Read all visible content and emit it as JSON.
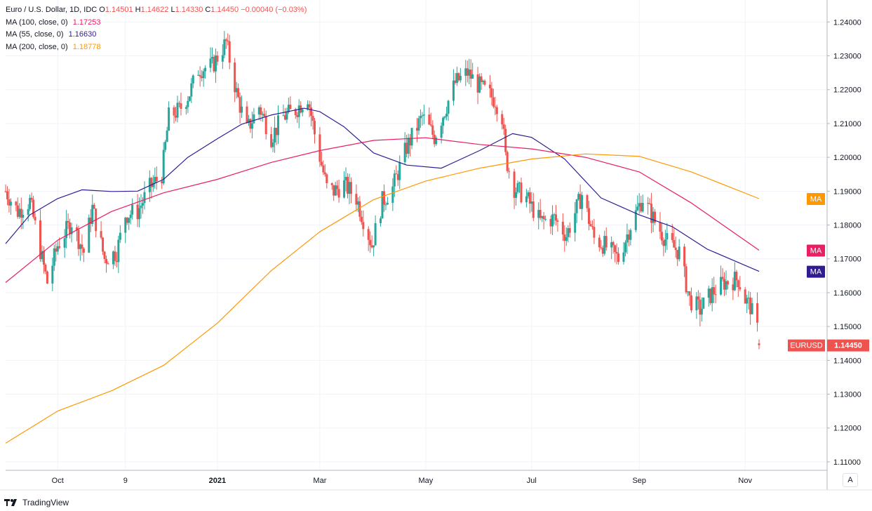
{
  "legend": {
    "symbol": "Euro / U.S. Dollar, 1D, IDC",
    "open_label": "O",
    "open": "1.14501",
    "high_label": "H",
    "high": "1.14622",
    "low_label": "L",
    "low": "1.14330",
    "close_label": "C",
    "close": "1.14450",
    "change": "−0.00040 (−0.03%)",
    "ma100_label": "MA (100, close, 0)",
    "ma100_value": "1.17253",
    "ma55_label": "MA (55, close, 0)",
    "ma55_value": "1.16630",
    "ma200_label": "MA (200, close, 0)",
    "ma200_value": "1.18778"
  },
  "footer": {
    "brand": "TradingView",
    "auto_button": "A"
  },
  "colors": {
    "up": "#26a69a",
    "down": "#ef5350",
    "ma100": "#e91e63",
    "ma55": "#311b92",
    "ma200": "#ff9800"
  },
  "chart_data": {
    "type": "candlestick",
    "symbol": "EURUSD",
    "y_ticks": [
      "1.24000",
      "1.23000",
      "1.22000",
      "1.21000",
      "1.20000",
      "1.19000",
      "1.18000",
      "1.17000",
      "1.16000",
      "1.15000",
      "1.14000",
      "1.13000",
      "1.12000",
      "1.11000"
    ],
    "ylim": [
      1.1075,
      1.2465
    ],
    "x_ticks": [
      "Oct",
      "9",
      "2021",
      "Mar",
      "May",
      "Jul",
      "Sep",
      "Nov"
    ],
    "x_tick_dates": [
      "2020-10-01",
      "2020-11-09",
      "2021-01-01",
      "2021-03-01",
      "2021-05-01",
      "2021-07-01",
      "2021-09-01",
      "2021-11-01"
    ],
    "x_range": [
      "2020-09-01",
      "2021-11-09"
    ],
    "price_label": {
      "name": "EURUSD",
      "value": "1.14450",
      "color": "#ef5350"
    },
    "ma_labels": [
      {
        "name": "MA",
        "value": 1.18778,
        "color": "#ff9800"
      },
      {
        "name": "MA",
        "value": 1.17253,
        "color": "#e91e63"
      },
      {
        "name": "MA",
        "value": 1.1663,
        "color": "#311b92"
      }
    ],
    "close_path": [
      [
        "2020-09-01",
        1.19
      ],
      [
        "2020-09-08",
        1.184
      ],
      [
        "2020-09-15",
        1.187
      ],
      [
        "2020-09-22",
        1.17
      ],
      [
        "2020-09-25",
        1.163
      ],
      [
        "2020-10-01",
        1.174
      ],
      [
        "2020-10-09",
        1.181
      ],
      [
        "2020-10-16",
        1.172
      ],
      [
        "2020-10-21",
        1.185
      ],
      [
        "2020-10-28",
        1.17
      ],
      [
        "2020-11-04",
        1.172
      ],
      [
        "2020-11-09",
        1.183
      ],
      [
        "2020-11-16",
        1.184
      ],
      [
        "2020-11-23",
        1.191
      ],
      [
        "2020-11-30",
        1.195
      ],
      [
        "2020-12-04",
        1.212
      ],
      [
        "2020-12-10",
        1.214
      ],
      [
        "2020-12-16",
        1.219
      ],
      [
        "2020-12-21",
        1.226
      ],
      [
        "2020-12-29",
        1.227
      ],
      [
        "2021-01-06",
        1.234
      ],
      [
        "2021-01-12",
        1.219
      ],
      [
        "2021-01-18",
        1.208
      ],
      [
        "2021-01-25",
        1.215
      ],
      [
        "2021-02-01",
        1.206
      ],
      [
        "2021-02-08",
        1.212
      ],
      [
        "2021-02-15",
        1.214
      ],
      [
        "2021-02-22",
        1.218
      ],
      [
        "2021-02-26",
        1.207
      ],
      [
        "2021-03-05",
        1.191
      ],
      [
        "2021-03-09",
        1.19
      ],
      [
        "2021-03-15",
        1.192
      ],
      [
        "2021-03-22",
        1.188
      ],
      [
        "2021-03-31",
        1.174
      ],
      [
        "2021-04-06",
        1.187
      ],
      [
        "2021-04-12",
        1.191
      ],
      [
        "2021-04-20",
        1.203
      ],
      [
        "2021-04-29",
        1.212
      ],
      [
        "2021-05-06",
        1.206
      ],
      [
        "2021-05-12",
        1.214
      ],
      [
        "2021-05-18",
        1.222
      ],
      [
        "2021-05-25",
        1.225
      ],
      [
        "2021-06-01",
        1.221
      ],
      [
        "2021-06-10",
        1.217
      ],
      [
        "2021-06-14",
        1.212
      ],
      [
        "2021-06-16",
        1.2
      ],
      [
        "2021-06-21",
        1.191
      ],
      [
        "2021-06-28",
        1.188
      ],
      [
        "2021-07-06",
        1.181
      ],
      [
        "2021-07-14",
        1.182
      ],
      [
        "2021-07-21",
        1.177
      ],
      [
        "2021-07-30",
        1.189
      ],
      [
        "2021-08-06",
        1.176
      ],
      [
        "2021-08-12",
        1.174
      ],
      [
        "2021-08-20",
        1.17
      ],
      [
        "2021-08-27",
        1.18
      ],
      [
        "2021-09-03",
        1.188
      ],
      [
        "2021-09-10",
        1.181
      ],
      [
        "2021-09-17",
        1.175
      ],
      [
        "2021-09-24",
        1.172
      ],
      [
        "2021-09-30",
        1.158
      ],
      [
        "2021-10-06",
        1.155
      ],
      [
        "2021-10-13",
        1.16
      ],
      [
        "2021-10-20",
        1.163
      ],
      [
        "2021-10-28",
        1.164
      ],
      [
        "2021-11-01",
        1.158
      ],
      [
        "2021-11-04",
        1.156
      ],
      [
        "2021-11-05",
        1.154
      ],
      [
        "2021-11-08",
        1.149
      ],
      [
        "2021-11-09",
        1.1445
      ]
    ],
    "series": [
      {
        "name": "MA (55, close, 0)",
        "color": "#311b92",
        "points": [
          [
            "2020-09-01",
            1.1745
          ],
          [
            "2020-09-15",
            1.183
          ],
          [
            "2020-10-01",
            1.1878
          ],
          [
            "2020-10-15",
            1.1904
          ],
          [
            "2020-11-01",
            1.1899
          ],
          [
            "2020-11-16",
            1.19
          ],
          [
            "2020-12-01",
            1.1935
          ],
          [
            "2020-12-15",
            1.2
          ],
          [
            "2021-01-01",
            1.2055
          ],
          [
            "2021-01-15",
            1.2098
          ],
          [
            "2021-02-01",
            1.2125
          ],
          [
            "2021-02-20",
            1.2145
          ],
          [
            "2021-03-01",
            1.2135
          ],
          [
            "2021-03-15",
            1.209
          ],
          [
            "2021-04-01",
            1.2013
          ],
          [
            "2021-04-20",
            1.1977
          ],
          [
            "2021-05-10",
            1.1968
          ],
          [
            "2021-06-01",
            1.202
          ],
          [
            "2021-06-20",
            1.207
          ],
          [
            "2021-07-01",
            1.2059
          ],
          [
            "2021-07-20",
            1.1995
          ],
          [
            "2021-08-10",
            1.188
          ],
          [
            "2021-09-01",
            1.183
          ],
          [
            "2021-09-20",
            1.1795
          ],
          [
            "2021-10-10",
            1.1729
          ],
          [
            "2021-11-09",
            1.1663
          ]
        ]
      },
      {
        "name": "MA (100, close, 0)",
        "color": "#e91e63",
        "points": [
          [
            "2020-09-01",
            1.163
          ],
          [
            "2020-10-01",
            1.1755
          ],
          [
            "2020-11-01",
            1.184
          ],
          [
            "2020-12-01",
            1.1895
          ],
          [
            "2021-01-01",
            1.1935
          ],
          [
            "2021-02-01",
            1.1985
          ],
          [
            "2021-03-01",
            1.202
          ],
          [
            "2021-04-01",
            1.205
          ],
          [
            "2021-05-01",
            1.2058
          ],
          [
            "2021-06-01",
            1.2038
          ],
          [
            "2021-07-01",
            1.2025
          ],
          [
            "2021-08-01",
            1.2
          ],
          [
            "2021-09-01",
            1.1957
          ],
          [
            "2021-10-01",
            1.1865
          ],
          [
            "2021-11-09",
            1.17253
          ]
        ]
      },
      {
        "name": "MA (200, close, 0)",
        "color": "#ff9800",
        "points": [
          [
            "2020-09-01",
            1.1155
          ],
          [
            "2020-10-01",
            1.125
          ],
          [
            "2020-11-01",
            1.131
          ],
          [
            "2020-12-01",
            1.1385
          ],
          [
            "2021-01-01",
            1.151
          ],
          [
            "2021-02-01",
            1.1665
          ],
          [
            "2021-03-01",
            1.178
          ],
          [
            "2021-04-01",
            1.1875
          ],
          [
            "2021-05-01",
            1.193
          ],
          [
            "2021-06-01",
            1.1968
          ],
          [
            "2021-07-01",
            1.1995
          ],
          [
            "2021-08-01",
            1.201
          ],
          [
            "2021-09-01",
            1.2003
          ],
          [
            "2021-10-01",
            1.1957
          ],
          [
            "2021-11-09",
            1.18778
          ]
        ]
      }
    ]
  }
}
